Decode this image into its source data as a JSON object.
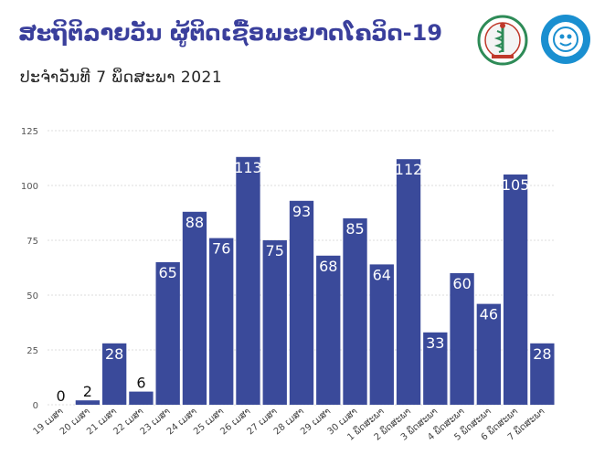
{
  "header": {
    "title": "ສະຖິຕິລາຍວັນ ຜູ້ຕິດເຊື້ອພະຍາດໂຄວິດ-19",
    "subtitle": "ປະຈຳວັນທີ 7 ພຶດສະພາ 2021"
  },
  "logos": [
    {
      "name": "ministry-of-health-logo"
    },
    {
      "name": "taskforce-logo"
    }
  ],
  "colors": {
    "bar": "#3a4a9a",
    "title": "#3a3f9c",
    "grid": "#dcdcdc"
  },
  "chart_data": {
    "type": "bar",
    "title": "",
    "xlabel": "",
    "ylabel": "",
    "ylim": [
      0,
      125
    ],
    "yticks": [
      0,
      25,
      50,
      75,
      100,
      125
    ],
    "grid": true,
    "legend": "none",
    "categories": [
      "19 ເມສາ",
      "20 ເມສາ",
      "21 ເມສາ",
      "22 ເມສາ",
      "23 ເມສາ",
      "24 ເມສາ",
      "25 ເມສາ",
      "26 ເມສາ",
      "27 ເມສາ",
      "28 ເມສາ",
      "29 ເມສາ",
      "30 ເມສາ",
      "1 ພຶດສະພາ",
      "2 ພຶດສະພາ",
      "3 ພຶດສະພາ",
      "4 ພຶດສະພາ",
      "5 ພຶດສະພາ",
      "6 ພຶດສະພາ",
      "7 ພຶດສະພາ"
    ],
    "values": [
      0,
      2,
      28,
      6,
      65,
      88,
      76,
      113,
      75,
      93,
      68,
      85,
      64,
      112,
      33,
      60,
      46,
      105,
      28
    ]
  }
}
